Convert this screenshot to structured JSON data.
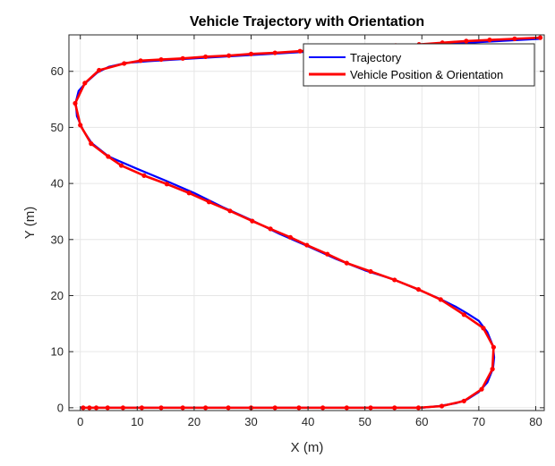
{
  "chart_data": {
    "type": "line",
    "title": "Vehicle Trajectory with Orientation",
    "xlabel": "X (m)",
    "ylabel": "Y (m)",
    "xlim": [
      -2,
      81.5
    ],
    "ylim": [
      -0.5,
      66.5
    ],
    "xticks": [
      0,
      10,
      20,
      30,
      40,
      50,
      60,
      70,
      80
    ],
    "yticks": [
      0,
      10,
      20,
      30,
      40,
      50,
      60
    ],
    "grid": true,
    "legend_position": "top-right",
    "colors": {
      "trajectory": "#0000ff",
      "markers": "#ff0000"
    },
    "series": [
      {
        "name": "Trajectory",
        "style": "line",
        "points": [
          [
            0,
            0
          ],
          [
            10,
            0
          ],
          [
            20,
            0
          ],
          [
            30,
            0
          ],
          [
            40,
            0
          ],
          [
            50,
            0
          ],
          [
            60,
            0
          ],
          [
            63,
            0.3
          ],
          [
            66,
            0.8
          ],
          [
            68,
            1.5
          ],
          [
            70,
            2.8
          ],
          [
            71.5,
            4.5
          ],
          [
            72.5,
            7
          ],
          [
            72.7,
            9
          ],
          [
            72.5,
            11
          ],
          [
            71.5,
            13.5
          ],
          [
            70,
            15.5
          ],
          [
            68,
            16.8
          ],
          [
            66,
            18
          ],
          [
            63,
            19.5
          ],
          [
            60,
            20.8
          ],
          [
            55,
            22.9
          ],
          [
            50,
            24.5
          ],
          [
            45,
            26.5
          ],
          [
            40,
            28.8
          ],
          [
            35,
            31
          ],
          [
            30,
            33.5
          ],
          [
            25,
            35.8
          ],
          [
            20,
            38.3
          ],
          [
            15,
            40.5
          ],
          [
            10,
            42.6
          ],
          [
            5,
            44.8
          ],
          [
            2,
            47.2
          ],
          [
            0.5,
            49.5
          ],
          [
            -0.6,
            52
          ],
          [
            -0.8,
            54.5
          ],
          [
            -0.3,
            56.5
          ],
          [
            1,
            58
          ],
          [
            3,
            59.8
          ],
          [
            5,
            60.8
          ],
          [
            8,
            61.5
          ],
          [
            12,
            61.8
          ],
          [
            20,
            62.3
          ],
          [
            30,
            62.9
          ],
          [
            40,
            63.5
          ],
          [
            50,
            64
          ],
          [
            60,
            64.6
          ],
          [
            70,
            65.2
          ],
          [
            80.8,
            65.8
          ]
        ]
      },
      {
        "name": "Vehicle Position & Orientation",
        "style": "markers-with-heading",
        "points": [
          [
            0.5,
            0
          ],
          [
            1.6,
            0
          ],
          [
            2.8,
            0
          ],
          [
            4.8,
            0
          ],
          [
            7.5,
            0
          ],
          [
            10.8,
            0
          ],
          [
            14.2,
            0
          ],
          [
            18,
            0
          ],
          [
            22,
            0
          ],
          [
            26,
            0
          ],
          [
            30,
            0
          ],
          [
            34.2,
            0
          ],
          [
            38.4,
            0
          ],
          [
            42.6,
            0
          ],
          [
            46.8,
            0
          ],
          [
            51,
            0
          ],
          [
            55.2,
            0
          ],
          [
            59.4,
            0
          ],
          [
            63.5,
            0.3
          ],
          [
            67.4,
            1.2
          ],
          [
            70.5,
            3.3
          ],
          [
            72.4,
            6.9
          ],
          [
            72.6,
            10.8
          ],
          [
            70.8,
            14.2
          ],
          [
            67.4,
            16.6
          ],
          [
            63.3,
            19.3
          ],
          [
            59.4,
            21.1
          ],
          [
            55.2,
            22.8
          ],
          [
            51,
            24.3
          ],
          [
            46.8,
            25.8
          ],
          [
            43.4,
            27.4
          ],
          [
            39.8,
            29
          ],
          [
            36.9,
            30.4
          ],
          [
            33.4,
            31.9
          ],
          [
            30.2,
            33.3
          ],
          [
            26.3,
            35.1
          ],
          [
            22.6,
            36.7
          ],
          [
            19.1,
            38.3
          ],
          [
            15.2,
            39.9
          ],
          [
            11.2,
            41.4
          ],
          [
            7.2,
            43.2
          ],
          [
            4.9,
            44.8
          ],
          [
            1.9,
            47.1
          ],
          [
            0,
            50.4
          ],
          [
            -0.9,
            54.3
          ],
          [
            0.8,
            57.9
          ],
          [
            3.3,
            60.2
          ],
          [
            7.7,
            61.4
          ],
          [
            10.6,
            61.9
          ],
          [
            14.2,
            62.1
          ],
          [
            18,
            62.3
          ],
          [
            22,
            62.6
          ],
          [
            26.1,
            62.8
          ],
          [
            30,
            63.1
          ],
          [
            34.2,
            63.3
          ],
          [
            38.6,
            63.6
          ],
          [
            42.6,
            63.8
          ],
          [
            46.8,
            64.1
          ],
          [
            51.3,
            64.3
          ],
          [
            55.4,
            64.6
          ],
          [
            59.5,
            64.8
          ],
          [
            63.6,
            65.1
          ],
          [
            67.8,
            65.4
          ],
          [
            71.9,
            65.6
          ],
          [
            76.3,
            65.8
          ],
          [
            80.8,
            66
          ]
        ]
      }
    ]
  }
}
